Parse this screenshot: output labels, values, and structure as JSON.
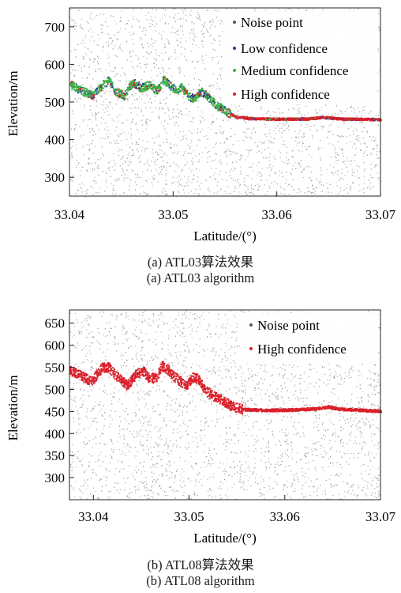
{
  "chart_data": [
    {
      "type": "scatter",
      "xlabel": "Latitude/(°)",
      "ylabel": "Elevation/m",
      "xlim": [
        33.04,
        33.07
      ],
      "ylim": [
        250,
        750
      ],
      "x_ticks": [
        "33.04",
        "33.05",
        "33.06",
        "33.07"
      ],
      "x_tick_values": [
        33.04,
        33.05,
        33.06,
        33.07
      ],
      "y_ticks": [
        "300",
        "400",
        "500",
        "600",
        "700"
      ],
      "y_tick_values": [
        300,
        400,
        500,
        600,
        700
      ],
      "legend_position": "top-right",
      "series": [
        {
          "name": "Noise point",
          "color": "#8a8a8a"
        },
        {
          "name": "Low confidence",
          "color": "#1f3aa8"
        },
        {
          "name": "Medium confidence",
          "color": "#3cb043"
        },
        {
          "name": "High confidence",
          "color": "#d9202a"
        }
      ],
      "surface_profile": {
        "x": [
          33.04,
          33.0415,
          33.0422,
          33.0432,
          33.0438,
          33.0443,
          33.0452,
          33.0458,
          33.0462,
          33.0469,
          33.0476,
          33.0484,
          33.049,
          33.0496,
          33.0502,
          33.0508,
          33.0514,
          33.052,
          33.0526,
          33.0532,
          33.0542,
          33.0552,
          33.056,
          33.0575,
          33.06,
          33.063,
          33.0645,
          33.066,
          33.07
        ],
        "y": [
          548,
          528,
          520,
          548,
          560,
          532,
          518,
          545,
          552,
          538,
          548,
          530,
          560,
          548,
          532,
          540,
          518,
          510,
          530,
          518,
          492,
          474,
          462,
          458,
          456,
          457,
          461,
          457,
          455
        ]
      },
      "caption_cn": "(a) ATL03算法效果",
      "caption_en": "(a) ATL03 algorithm"
    },
    {
      "type": "scatter",
      "xlabel": "Latitude/(°)",
      "ylabel": "Elevation/m",
      "xlim": [
        33.0375,
        33.07
      ],
      "ylim": [
        250,
        680
      ],
      "x_ticks": [
        "33.04",
        "33.05",
        "33.06",
        "33.07"
      ],
      "x_tick_values": [
        33.04,
        33.05,
        33.06,
        33.07
      ],
      "y_ticks": [
        "300",
        "350",
        "400",
        "450",
        "500",
        "550",
        "600",
        "650"
      ],
      "y_tick_values": [
        300,
        350,
        400,
        450,
        500,
        550,
        600,
        650
      ],
      "legend_position": "top-right",
      "series": [
        {
          "name": "Noise point",
          "color": "#8a8a8a"
        },
        {
          "name": "High confidence",
          "color": "#d9202a"
        }
      ],
      "surface_profile": {
        "x": [
          33.0375,
          33.039,
          33.0398,
          33.0408,
          33.0415,
          33.0422,
          33.0435,
          33.0445,
          33.0452,
          33.0458,
          33.0466,
          33.0471,
          33.0478,
          33.0484,
          33.049,
          33.0497,
          33.0504,
          33.051,
          33.0516,
          33.0524,
          33.0533,
          33.0543,
          33.0555,
          33.058,
          33.061,
          33.0635,
          33.0645,
          33.0655,
          33.07
        ],
        "y": [
          545,
          528,
          520,
          550,
          552,
          535,
          510,
          538,
          542,
          525,
          530,
          555,
          545,
          530,
          520,
          512,
          530,
          522,
          500,
          488,
          478,
          465,
          456,
          454,
          455,
          458,
          462,
          457,
          452
        ]
      },
      "caption_cn": "(b) ATL08算法效果",
      "caption_en": "(b) ATL08 algorithm"
    }
  ]
}
